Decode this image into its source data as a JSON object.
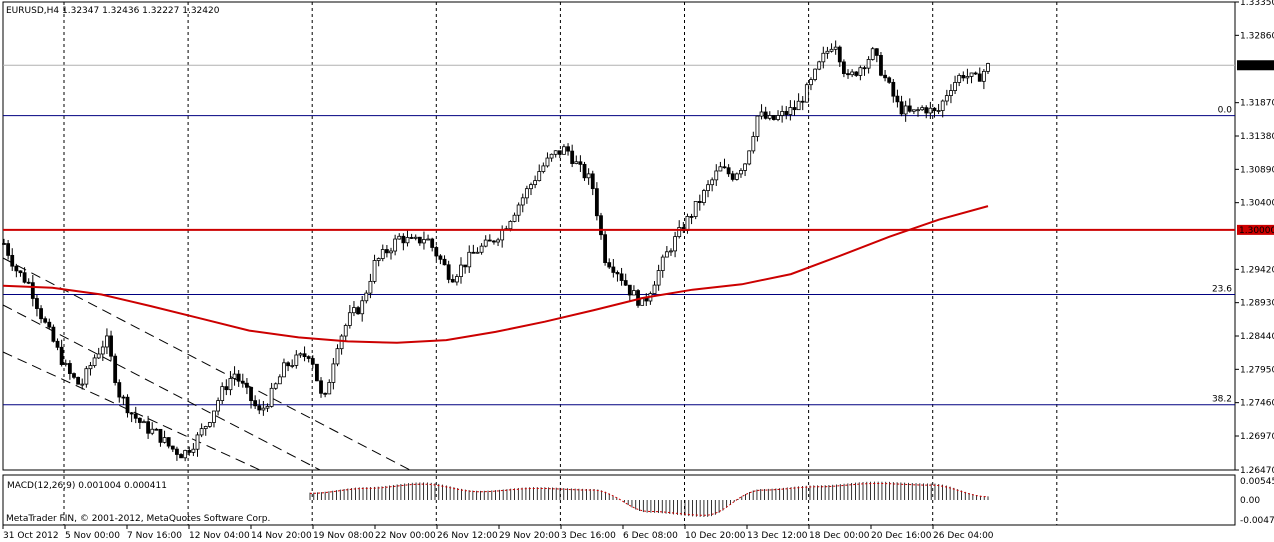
{
  "header": {
    "symbol": "EURUSD,H4",
    "ohlc": "1.32347 1.32436 1.32227 1.32420"
  },
  "macd": {
    "label": "MACD(12,26,9) 0.001004 0.000411",
    "axis_ticks": [
      "0.00545",
      "0.00",
      "-0.00472"
    ]
  },
  "copyright": "MetaTrader FIN, © 2001-2012, MetaQuotes Software Corp.",
  "colors": {
    "background": "#ffffff",
    "candle": "#000000",
    "moving_average": "#cc0000",
    "level_line": "#cc0000",
    "fib_line": "#000080",
    "grid": "#000000",
    "macd_signal": "#cc0000"
  },
  "chart_data": {
    "type": "candlestick",
    "title": "EURUSD,H4",
    "ylim": [
      1.2647,
      1.3335
    ],
    "y_ticks": [
      "1.33350",
      "1.32860",
      "1.31870",
      "1.31380",
      "1.30890",
      "1.30400",
      "1.29420",
      "1.28930",
      "1.28440",
      "1.27950",
      "1.27460",
      "1.26970",
      "1.26470"
    ],
    "x_ticks": [
      "31 Oct 2012",
      "5 Nov 00:00",
      "7 Nov 16:00",
      "12 Nov 04:00",
      "14 Nov 20:00",
      "19 Nov 08:00",
      "22 Nov 00:00",
      "26 Nov 12:00",
      "29 Nov 20:00",
      "3 Dec 16:00",
      "6 Dec 08:00",
      "10 Dec 20:00",
      "13 Dec 12:00",
      "18 Dec 00:00",
      "20 Dec 16:00",
      "26 Dec 04:00"
    ],
    "current_price": "1.32420",
    "level_label": "1.30000",
    "level_value": 1.3,
    "fib_levels": [
      {
        "label": "0.0",
        "value": 1.3168
      },
      {
        "label": "23.6",
        "value": 1.2905
      },
      {
        "label": "38.2",
        "value": 1.2743
      }
    ],
    "price_path": [
      1.298,
      1.294,
      1.292,
      1.287,
      1.283,
      1.279,
      1.277,
      1.281,
      1.284,
      1.276,
      1.273,
      1.271,
      1.27,
      1.268,
      1.267,
      1.269,
      1.272,
      1.276,
      1.279,
      1.276,
      1.273,
      1.276,
      1.28,
      1.281,
      1.282,
      1.274,
      1.283,
      1.287,
      1.289,
      1.295,
      1.297,
      1.299,
      1.298,
      1.299,
      1.296,
      1.293,
      1.295,
      1.297,
      1.298,
      1.3,
      1.303,
      1.306,
      1.309,
      1.311,
      1.312,
      1.309,
      1.307,
      1.296,
      1.294,
      1.291,
      1.289,
      1.293,
      1.297,
      1.3,
      1.303,
      1.306,
      1.309,
      1.308,
      1.31,
      1.317,
      1.316,
      1.317,
      1.318,
      1.321,
      1.325,
      1.328,
      1.322,
      1.324,
      1.326,
      1.322,
      1.318,
      1.317,
      1.318,
      1.317,
      1.321,
      1.323,
      1.322,
      1.324
    ],
    "moving_average": [
      1.2918,
      1.2915,
      1.2905,
      1.2888,
      1.287,
      1.2852,
      1.2842,
      1.2836,
      1.2834,
      1.2838,
      1.285,
      1.2865,
      1.2882,
      1.29,
      1.2912,
      1.292,
      1.2935,
      1.2962,
      1.299,
      1.3015,
      1.3035
    ],
    "macd_hist_peaks": [
      0.002,
      0.0035,
      0.0048,
      0.0025,
      0.0035,
      0.003,
      -0.003,
      -0.004,
      0.003,
      0.004,
      0.005,
      0.0045,
      0.001
    ]
  }
}
